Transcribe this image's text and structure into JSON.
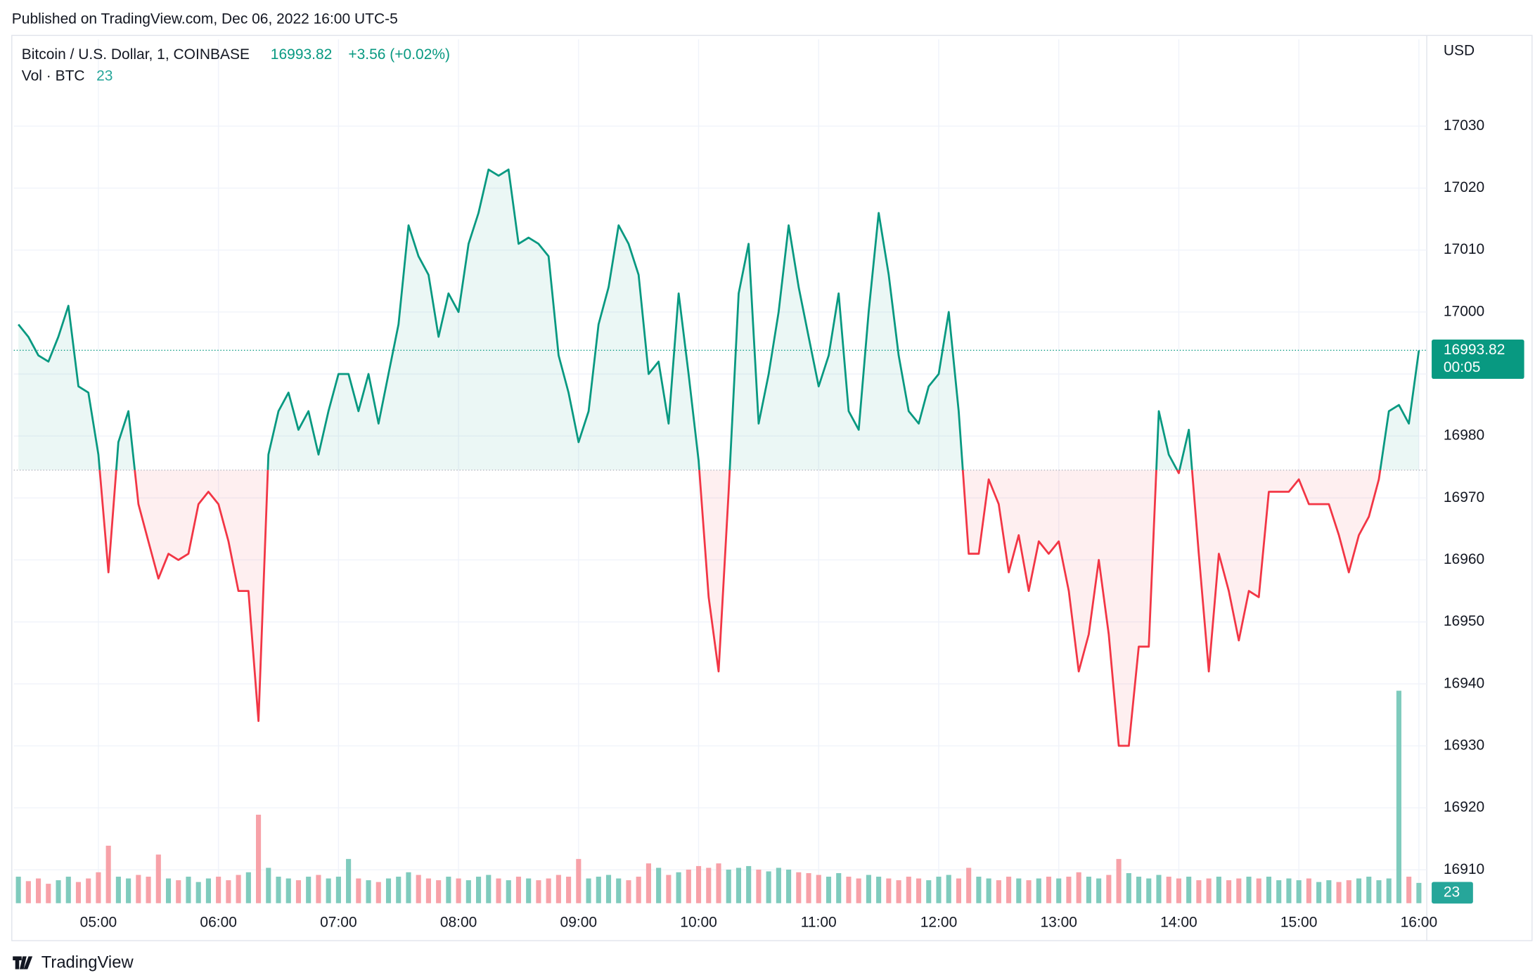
{
  "chart_data": {
    "type": "line",
    "published": "Published on TradingView.com, Dec 06, 2022 16:00 UTC-5",
    "title": "Bitcoin / U.S. Dollar, 1, COINBASE",
    "change": "+3.56 (+0.02%)",
    "volume_title": "Vol · BTC",
    "currency": "USD",
    "countdown": "00:05",
    "brand": "TradingView",
    "x": [
      "04:20",
      "04:25",
      "04:30",
      "04:35",
      "04:40",
      "04:45",
      "04:50",
      "04:55",
      "05:00",
      "05:05",
      "05:10",
      "05:15",
      "05:20",
      "05:25",
      "05:30",
      "05:35",
      "05:40",
      "05:45",
      "05:50",
      "05:55",
      "06:00",
      "06:05",
      "06:10",
      "06:15",
      "06:20",
      "06:25",
      "06:30",
      "06:35",
      "06:40",
      "06:45",
      "06:50",
      "06:55",
      "07:00",
      "07:05",
      "07:10",
      "07:15",
      "07:20",
      "07:25",
      "07:30",
      "07:35",
      "07:40",
      "07:45",
      "07:50",
      "07:55",
      "08:00",
      "08:05",
      "08:10",
      "08:15",
      "08:20",
      "08:25",
      "08:30",
      "08:35",
      "08:40",
      "08:45",
      "08:50",
      "08:55",
      "09:00",
      "09:05",
      "09:10",
      "09:15",
      "09:20",
      "09:25",
      "09:30",
      "09:35",
      "09:40",
      "09:45",
      "09:50",
      "09:55",
      "10:00",
      "10:05",
      "10:10",
      "10:15",
      "10:20",
      "10:25",
      "10:30",
      "10:35",
      "10:40",
      "10:45",
      "10:50",
      "10:55",
      "11:00",
      "11:05",
      "11:10",
      "11:15",
      "11:20",
      "11:25",
      "11:30",
      "11:35",
      "11:40",
      "11:45",
      "11:50",
      "11:55",
      "12:00",
      "12:05",
      "12:10",
      "12:15",
      "12:20",
      "12:25",
      "12:30",
      "12:35",
      "12:40",
      "12:45",
      "12:50",
      "12:55",
      "13:00",
      "13:05",
      "13:10",
      "13:15",
      "13:20",
      "13:25",
      "13:30",
      "13:35",
      "13:40",
      "13:45",
      "13:50",
      "13:55",
      "14:00",
      "14:05",
      "14:10",
      "14:15",
      "14:20",
      "14:25",
      "14:30",
      "14:35",
      "14:40",
      "14:45",
      "14:50",
      "14:55",
      "15:00",
      "15:05",
      "15:10",
      "15:15",
      "15:20",
      "15:25",
      "15:30",
      "15:35",
      "15:40",
      "15:45",
      "15:50",
      "15:55",
      "16:00"
    ],
    "series": [
      {
        "name": "Bitcoin / U.S. Dollar",
        "color_up": "#089981",
        "color_down": "#f23645",
        "values": [
          16998,
          16996,
          16993,
          16992,
          16996,
          17001,
          16988,
          16987,
          16977,
          16958,
          16979,
          16984,
          16969,
          16963,
          16957,
          16961,
          16960,
          16961,
          16969,
          16971,
          16969,
          16963,
          16955,
          16955,
          16934,
          16977,
          16984,
          16987,
          16981,
          16984,
          16977,
          16984,
          16990,
          16990,
          16984,
          16990,
          16982,
          16990,
          16998,
          17014,
          17009,
          17006,
          16996,
          17003,
          17000,
          17011,
          17016,
          17023,
          17022,
          17023,
          17011,
          17012,
          17011,
          17009,
          16993,
          16987,
          16979,
          16984,
          16998,
          17004,
          17014,
          17011,
          17006,
          16990,
          16992,
          16982,
          17003,
          16990,
          16976,
          16954,
          16942,
          16971,
          17003,
          17011,
          16982,
          16990,
          17000,
          17014,
          17004,
          16996,
          16988,
          16993,
          17003,
          16984,
          16981,
          17000,
          17016,
          17006,
          16993,
          16984,
          16982,
          16988,
          16990,
          17000,
          16984,
          16961,
          16961,
          16973,
          16969,
          16958,
          16964,
          16955,
          16963,
          16961,
          16963,
          16955,
          16942,
          16948,
          16960,
          16948,
          16930,
          16930,
          16946,
          16946,
          16984,
          16977,
          16974,
          16981,
          16961,
          16942,
          16961,
          16955,
          16947,
          16955,
          16954,
          16971,
          16971,
          16971,
          16973,
          16969,
          16969,
          16969,
          16964,
          16958,
          16964,
          16967,
          16973,
          16984,
          16985,
          16982,
          16993.82
        ]
      },
      {
        "name": "Vol · BTC",
        "color_up": "#7fcbbd",
        "color_down": "#f7a1a8",
        "values": [
          30,
          25,
          28,
          22,
          26,
          30,
          24,
          28,
          35,
          65,
          30,
          28,
          32,
          30,
          55,
          28,
          26,
          30,
          24,
          28,
          30,
          26,
          32,
          35,
          100,
          40,
          30,
          28,
          26,
          30,
          32,
          28,
          30,
          50,
          28,
          26,
          24,
          28,
          30,
          35,
          32,
          28,
          26,
          30,
          28,
          26,
          30,
          32,
          28,
          26,
          30,
          28,
          26,
          28,
          32,
          30,
          50,
          28,
          30,
          32,
          28,
          26,
          30,
          45,
          40,
          32,
          35,
          38,
          42,
          40,
          45,
          38,
          40,
          42,
          38,
          36,
          40,
          38,
          35,
          34,
          32,
          30,
          34,
          30,
          28,
          32,
          30,
          28,
          26,
          30,
          28,
          26,
          30,
          32,
          28,
          40,
          30,
          28,
          26,
          30,
          28,
          26,
          28,
          30,
          28,
          30,
          35,
          30,
          28,
          32,
          50,
          34,
          30,
          28,
          32,
          30,
          28,
          30,
          26,
          28,
          30,
          26,
          28,
          30,
          28,
          30,
          26,
          28,
          26,
          28,
          24,
          26,
          24,
          26,
          28,
          30,
          26,
          28,
          240,
          30,
          23
        ]
      }
    ],
    "baseline": 16974.5,
    "xticks": [
      "05:00",
      "06:00",
      "07:00",
      "08:00",
      "09:00",
      "10:00",
      "11:00",
      "12:00",
      "13:00",
      "14:00",
      "15:00",
      "16:00"
    ],
    "ylim": [
      16904.6,
      17044
    ],
    "yticks": [
      16910,
      16920,
      16930,
      16940,
      16950,
      16960,
      16970,
      16980,
      16990,
      17000,
      17010,
      17020,
      17030
    ],
    "volume_ylim": [
      0,
      300
    ],
    "grid": true
  }
}
